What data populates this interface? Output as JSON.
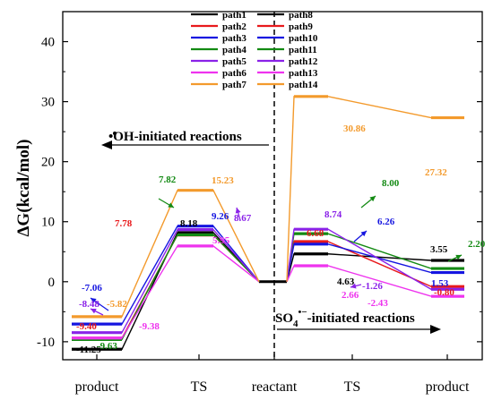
{
  "chart_data": {
    "type": "line",
    "ylabel": "ΔG(kcal/mol)",
    "ylim": [
      -13,
      45
    ],
    "yticks": [
      -10,
      0,
      10,
      20,
      30,
      40
    ],
    "categories": [
      "product",
      "TS",
      "reactant",
      "TS",
      "product"
    ],
    "legend_position": "top-center",
    "annotations": {
      "oh_label": "•OH-initiated reactions",
      "so4_label": "SO4•−-initiated reactions",
      "so4_main": "SO",
      "so4_sub": "4",
      "so4_sup": "•−",
      "so4_rest": "-initiated reactions"
    },
    "series": [
      {
        "name": "path1",
        "color": "#000000",
        "side": "left",
        "product": -11.25,
        "ts": 8.18
      },
      {
        "name": "path2",
        "color": "#e8191c",
        "side": "left",
        "product": -9.4,
        "ts": 7.78
      },
      {
        "name": "path3",
        "color": "#1515e0",
        "side": "left",
        "product": -7.06,
        "ts": 9.26
      },
      {
        "name": "path4",
        "color": "#138a13",
        "side": "left",
        "product": -9.63,
        "ts": 7.82
      },
      {
        "name": "path5",
        "color": "#8a22e8",
        "side": "left",
        "product": -8.48,
        "ts": 8.67
      },
      {
        "name": "path6",
        "color": "#ee33ee",
        "side": "left",
        "product": -9.38,
        "ts": 5.95
      },
      {
        "name": "path7",
        "color": "#f39a2c",
        "side": "left",
        "product": -5.82,
        "ts": 15.23
      },
      {
        "name": "path8",
        "color": "#000000",
        "side": "right",
        "product": 3.55,
        "ts": 4.63
      },
      {
        "name": "path9",
        "color": "#e8191c",
        "side": "right",
        "product": -0.8,
        "ts": 6.68
      },
      {
        "name": "path10",
        "color": "#1515e0",
        "side": "right",
        "product": 1.53,
        "ts": 6.26
      },
      {
        "name": "path11",
        "color": "#138a13",
        "side": "right",
        "product": 2.2,
        "ts": 8.0
      },
      {
        "name": "path12",
        "color": "#8a22e8",
        "side": "right",
        "product": -1.26,
        "ts": 8.74
      },
      {
        "name": "path13",
        "color": "#ee33ee",
        "side": "right",
        "product": -2.43,
        "ts": 2.66
      },
      {
        "name": "path14",
        "color": "#f39a2c",
        "side": "right",
        "product": 27.32,
        "ts": 30.86
      }
    ],
    "labels": [
      {
        "text": "-11.25",
        "color": "#000000"
      },
      {
        "text": "-9.40",
        "color": "#e8191c"
      },
      {
        "text": "-7.06",
        "color": "#1515e0"
      },
      {
        "text": "-9.63",
        "color": "#138a13"
      },
      {
        "text": "-8.48",
        "color": "#8a22e8"
      },
      {
        "text": "-9.38",
        "color": "#ee33ee"
      },
      {
        "text": "-5.82",
        "color": "#f39a2c"
      },
      {
        "text": "8.18",
        "color": "#000000"
      },
      {
        "text": "7.78",
        "color": "#e8191c"
      },
      {
        "text": "9.26",
        "color": "#1515e0"
      },
      {
        "text": "7.82",
        "color": "#138a13"
      },
      {
        "text": "8.67",
        "color": "#8a22e8"
      },
      {
        "text": "5.95",
        "color": "#ee33ee"
      },
      {
        "text": "15.23",
        "color": "#f39a2c"
      },
      {
        "text": "4.63",
        "color": "#000000"
      },
      {
        "text": "6.68",
        "color": "#e8191c"
      },
      {
        "text": "6.26",
        "color": "#1515e0"
      },
      {
        "text": "8.00",
        "color": "#138a13"
      },
      {
        "text": "8.74",
        "color": "#8a22e8"
      },
      {
        "text": "2.66",
        "color": "#ee33ee"
      },
      {
        "text": "30.86",
        "color": "#f39a2c"
      },
      {
        "text": "3.55",
        "color": "#000000"
      },
      {
        "text": "-0.80",
        "color": "#e8191c"
      },
      {
        "text": "1.53",
        "color": "#1515e0"
      },
      {
        "text": "2.20",
        "color": "#138a13"
      },
      {
        "text": "-1.26",
        "color": "#8a22e8"
      },
      {
        "text": "-2.43",
        "color": "#ee33ee"
      },
      {
        "text": "27.32",
        "color": "#f39a2c"
      }
    ]
  }
}
